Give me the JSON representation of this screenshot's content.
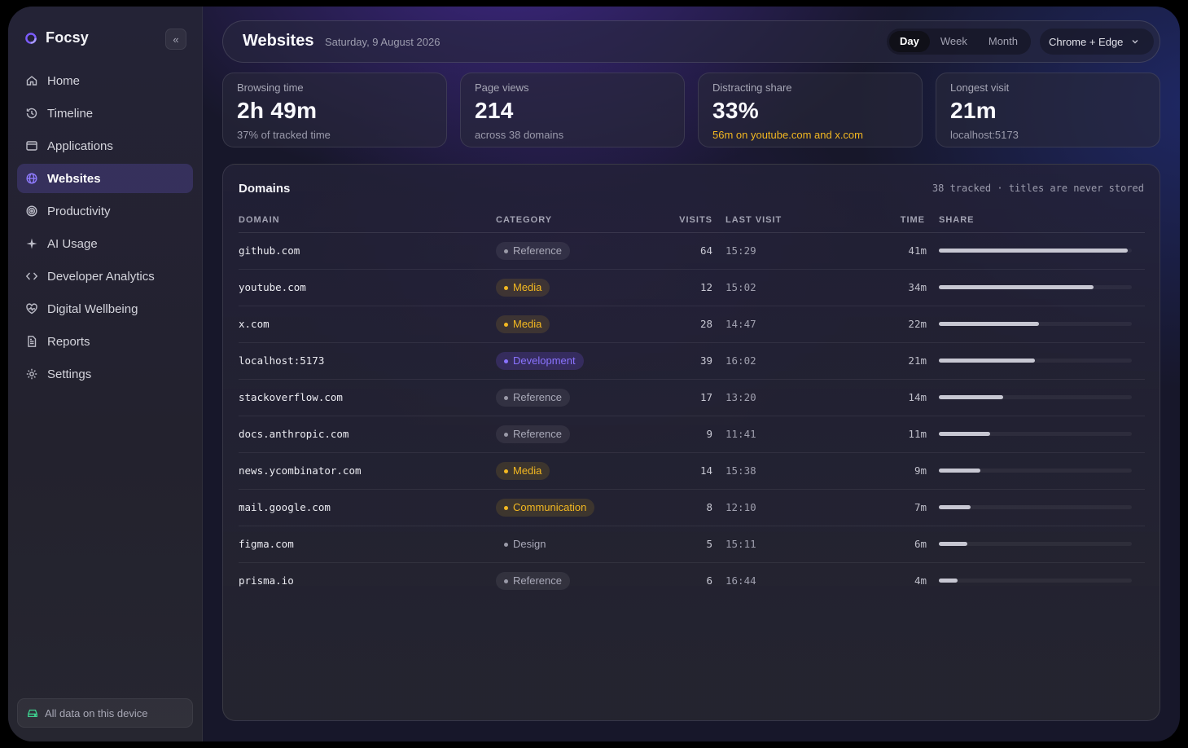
{
  "app": {
    "name": "Focsy"
  },
  "sidebar": {
    "items": [
      {
        "label": "Home",
        "icon": "home-icon"
      },
      {
        "label": "Timeline",
        "icon": "history-icon"
      },
      {
        "label": "Applications",
        "icon": "window-icon"
      },
      {
        "label": "Websites",
        "icon": "globe-icon",
        "active": true
      },
      {
        "label": "Productivity",
        "icon": "target-icon"
      },
      {
        "label": "AI Usage",
        "icon": "sparkle-icon"
      },
      {
        "label": "Developer Analytics",
        "icon": "code-icon"
      },
      {
        "label": "Digital Wellbeing",
        "icon": "heart-pulse-icon"
      },
      {
        "label": "Reports",
        "icon": "document-icon"
      },
      {
        "label": "Settings",
        "icon": "gear-icon"
      }
    ],
    "footer_label": "All data on this device"
  },
  "header": {
    "title": "Websites",
    "date": "Saturday, 9 August 2026",
    "ranges": [
      "Day",
      "Week",
      "Month"
    ],
    "selected_range": "Day",
    "browser_filter": "Chrome + Edge"
  },
  "stats": [
    {
      "label": "Browsing time",
      "value": "2h 49m",
      "sub": "37% of tracked time"
    },
    {
      "label": "Page views",
      "value": "214",
      "sub": "across 38 domains"
    },
    {
      "label": "Distracting share",
      "value": "33%",
      "sub": "56m on youtube.com and x.com"
    },
    {
      "label": "Longest visit",
      "value": "21m",
      "sub": "localhost:5173"
    }
  ],
  "domains": {
    "title": "Domains",
    "note": "38 tracked · titles are never stored",
    "columns": [
      "DOMAIN",
      "CATEGORY",
      "VISITS",
      "LAST VISIT",
      "TIME",
      "SHARE"
    ],
    "rows": [
      {
        "domain": "github.com",
        "category": "Reference",
        "visits": "64",
        "last": "15:29",
        "time": "41m",
        "share": 1.0
      },
      {
        "domain": "youtube.com",
        "category": "Media",
        "visits": "12",
        "last": "15:02",
        "time": "34m",
        "share": 0.82
      },
      {
        "domain": "x.com",
        "category": "Media",
        "visits": "28",
        "last": "14:47",
        "time": "22m",
        "share": 0.53
      },
      {
        "domain": "localhost:5173",
        "category": "Development",
        "visits": "39",
        "last": "16:02",
        "time": "21m",
        "share": 0.51
      },
      {
        "domain": "stackoverflow.com",
        "category": "Reference",
        "visits": "17",
        "last": "13:20",
        "time": "14m",
        "share": 0.34
      },
      {
        "domain": "docs.anthropic.com",
        "category": "Reference",
        "visits": "9",
        "last": "11:41",
        "time": "11m",
        "share": 0.27
      },
      {
        "domain": "news.ycombinator.com",
        "category": "Media",
        "visits": "14",
        "last": "15:38",
        "time": "9m",
        "share": 0.22
      },
      {
        "domain": "mail.google.com",
        "category": "Communication",
        "visits": "8",
        "last": "12:10",
        "time": "7m",
        "share": 0.17
      },
      {
        "domain": "figma.com",
        "category": "Design",
        "visits": "5",
        "last": "15:11",
        "time": "6m",
        "share": 0.15
      },
      {
        "domain": "prisma.io",
        "category": "Reference",
        "visits": "6",
        "last": "16:44",
        "time": "4m",
        "share": 0.1
      }
    ]
  },
  "colors": {
    "accent": "#7c5cff",
    "warning": "#f3b821",
    "device_ok": "#3ecf8e"
  }
}
